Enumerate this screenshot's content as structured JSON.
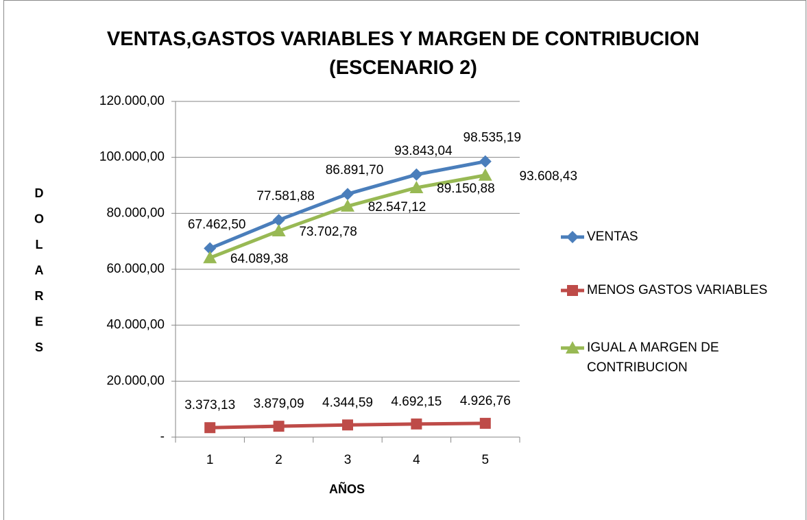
{
  "chart_data": {
    "type": "line",
    "title": "VENTAS,GASTOS VARIABLES Y MARGEN DE CONTRIBUCION (ESCENARIO 2)",
    "x_label": "AÑOS",
    "y_label": "DOLARES",
    "categories": [
      "1",
      "2",
      "3",
      "4",
      "5"
    ],
    "series": [
      {
        "name": "VENTAS",
        "color": "#4a7ebb",
        "marker": "diamond",
        "values": [
          67462.5,
          77581.88,
          86891.7,
          93843.04,
          98535.19
        ],
        "value_labels": [
          "67.462,50",
          "77.581,88",
          "86.891,70",
          "93.843,04",
          "98.535,19"
        ]
      },
      {
        "name": "MENOS GASTOS VARIABLES",
        "color": "#be4b48",
        "marker": "square",
        "values": [
          3373.13,
          3879.09,
          4344.59,
          4692.15,
          4926.76
        ],
        "value_labels": [
          "3.373,13",
          "3.879,09",
          "4.344,59",
          "4.692,15",
          "4.926,76"
        ]
      },
      {
        "name": "IGUAL A MARGEN DE CONTRIBUCION",
        "color": "#98b954",
        "marker": "triangle",
        "values": [
          64089.38,
          73702.78,
          82547.12,
          89150.88,
          93608.43
        ],
        "value_labels": [
          "64.089,38",
          "73.702,78",
          "82.547,12",
          "89.150,88",
          "93.608,43"
        ]
      }
    ],
    "ylim": [
      0,
      120000
    ],
    "yticks": [
      {
        "value": 0,
        "label": "-"
      },
      {
        "value": 20000,
        "label": "20.000,00"
      },
      {
        "value": 40000,
        "label": "40.000,00"
      },
      {
        "value": 60000,
        "label": "60.000,00"
      },
      {
        "value": 80000,
        "label": "80.000,00"
      },
      {
        "value": 100000,
        "label": "100.000,00"
      },
      {
        "value": 120000,
        "label": "120.000,00"
      }
    ],
    "grid": true,
    "legend": "right"
  }
}
